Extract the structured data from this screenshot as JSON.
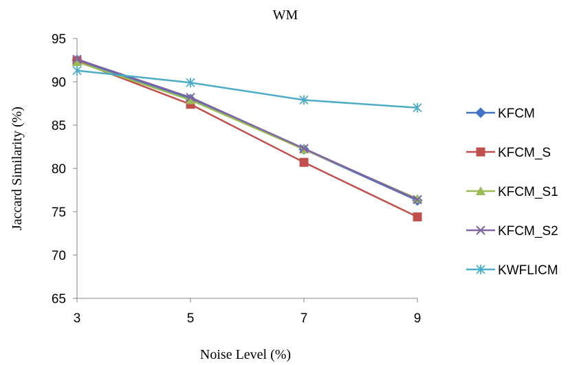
{
  "chart_data": {
    "type": "line",
    "title": "WM",
    "xlabel": "Noise Level (%)",
    "ylabel": "Jaccard Similarity (%)",
    "x": [
      3,
      5,
      7,
      9
    ],
    "x_tick_labels": [
      "3",
      "5",
      "7",
      "9"
    ],
    "ylim": [
      65,
      95
    ],
    "y_ticks": [
      65,
      70,
      75,
      80,
      85,
      90,
      95
    ],
    "grid": false,
    "legend_position": "right",
    "series": [
      {
        "name": "KFCM",
        "values": [
          92.5,
          88.0,
          82.2,
          76.3
        ],
        "color": "#4472C4",
        "marker": "diamond"
      },
      {
        "name": "KFCM_S",
        "values": [
          92.4,
          87.4,
          80.7,
          74.4
        ],
        "color": "#C0504D",
        "marker": "square"
      },
      {
        "name": "KFCM_S1",
        "values": [
          92.3,
          87.9,
          82.2,
          76.5
        ],
        "color": "#9BBB59",
        "marker": "triangle"
      },
      {
        "name": "KFCM_S2",
        "values": [
          92.6,
          88.2,
          82.3,
          76.4
        ],
        "color": "#8064A2",
        "marker": "x"
      },
      {
        "name": "KWFLICM",
        "values": [
          91.3,
          89.9,
          87.9,
          87.0
        ],
        "color": "#4BACC6",
        "marker": "star"
      }
    ]
  }
}
